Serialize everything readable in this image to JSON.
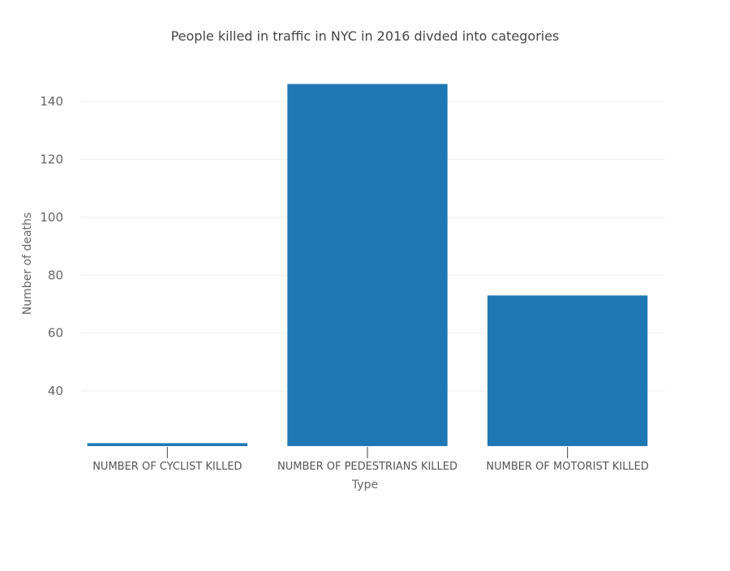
{
  "chart_data": {
    "type": "bar",
    "title": "People killed in traffic in NYC in 2016 divded into categories",
    "xlabel": "Type",
    "ylabel": "Number of deaths",
    "categories": [
      "NUMBER OF CYCLIST KILLED",
      "NUMBER OF PEDESTRIANS KILLED",
      "NUMBER OF MOTORIST KILLED"
    ],
    "values": [
      22,
      146,
      73
    ],
    "ylim": [
      21,
      147
    ],
    "yticks": [
      40,
      60,
      80,
      100,
      120,
      140
    ],
    "grid": true,
    "legend": "none",
    "bar_color": "#1f77b4"
  }
}
